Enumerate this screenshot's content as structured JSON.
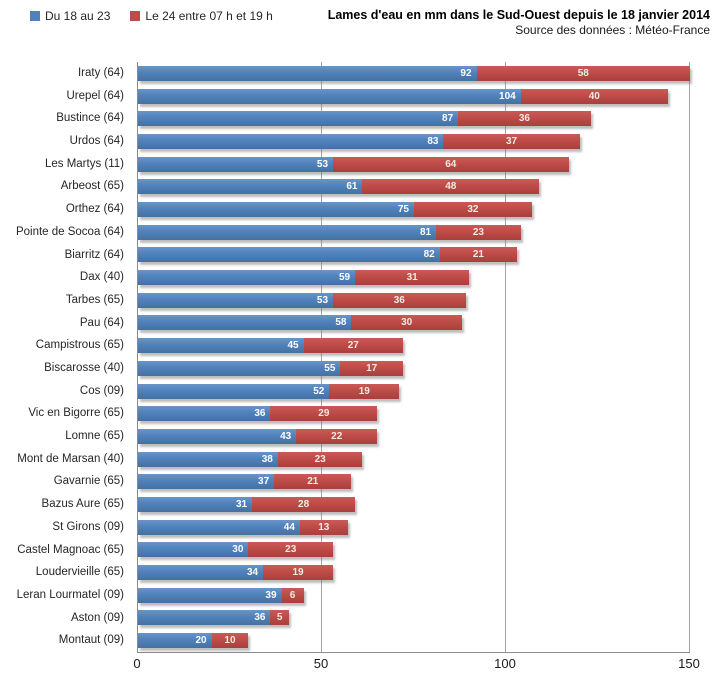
{
  "header": {
    "title": "Lames d'eau en mm dans le Sud-Ouest depuis le 18 janvier  2014",
    "subtitle": "Source des données : Météo-France"
  },
  "legend": [
    {
      "label": "Du 18 au 23",
      "color": "#4F81BD"
    },
    {
      "label": "Le 24 entre 07 h et 19 h",
      "color": "#BE4B48"
    }
  ],
  "chart_data": {
    "type": "bar",
    "orientation": "horizontal",
    "stacked": true,
    "title": "Lames d'eau en mm dans le Sud-Ouest depuis le 18 janvier 2014",
    "xlabel": "",
    "ylabel": "",
    "xlim": [
      0,
      150
    ],
    "xticks": [
      0,
      50,
      100,
      150
    ],
    "grid": "vertical",
    "legend_position": "top-left",
    "categories": [
      "Iraty (64)",
      "Urepel (64)",
      "Bustince (64)",
      "Urdos (64)",
      "Les Martys (11)",
      "Arbeost (65)",
      "Orthez (64)",
      "Pointe de Socoa (64)",
      "Biarritz (64)",
      "Dax (40)",
      "Tarbes (65)",
      "Pau (64)",
      "Campistrous (65)",
      "Biscarosse (40)",
      "Cos (09)",
      "Vic en Bigorre (65)",
      "Lomne (65)",
      "Mont de Marsan (40)",
      "Gavarnie (65)",
      "Bazus Aure (65)",
      "St Girons (09)",
      "Castel Magnoac (65)",
      "Loudervieille (65)",
      "Leran Lourmatel (09)",
      "Aston (09)",
      "Montaut (09)"
    ],
    "series": [
      {
        "name": "Du 18 au 23",
        "color": "#4F81BD",
        "label_color": "#FFFFFF",
        "values": [
          92,
          104,
          87,
          83,
          53,
          61,
          75,
          81,
          82,
          59,
          53,
          58,
          45,
          55,
          52,
          36,
          43,
          38,
          37,
          31,
          44,
          30,
          34,
          39,
          36,
          20
        ]
      },
      {
        "name": "Le 24 entre 07 h et 19 h",
        "color": "#BE4B48",
        "label_color": "#EEECE1",
        "values": [
          58,
          40,
          36,
          37,
          64,
          48,
          32,
          23,
          21,
          31,
          36,
          30,
          27,
          17,
          19,
          29,
          22,
          23,
          21,
          28,
          13,
          23,
          19,
          6,
          5,
          10
        ]
      }
    ]
  }
}
